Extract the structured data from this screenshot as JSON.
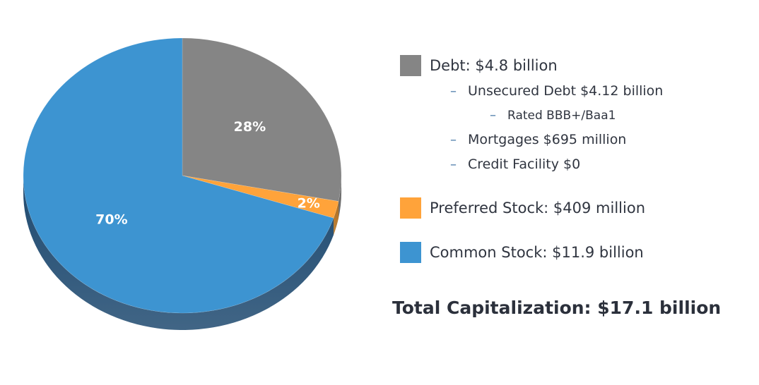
{
  "chart_data": {
    "type": "pie",
    "title": "",
    "slices": [
      {
        "name": "Debt",
        "value": 28,
        "label": "28%",
        "color": "#858585",
        "side_color": "#5c5c5c"
      },
      {
        "name": "Preferred Stock",
        "value": 2,
        "label": "2%",
        "color": "#ffa33a",
        "side_color": "#b06d1c"
      },
      {
        "name": "Common Stock",
        "value": 70,
        "label": "70%",
        "color": "#3d94d1",
        "side_color": "#1f4a70"
      }
    ],
    "start_angle": "12 o'clock",
    "direction": "clockwise",
    "style": "3d"
  },
  "legend": {
    "debt": {
      "label": "Debt: $4.8 billion",
      "color": "#858585",
      "sub_items": [
        {
          "dash": "–",
          "text": "Unsecured Debt $4.12 billion"
        },
        {
          "dash": "–",
          "text": "Rated BBB+/Baa1"
        },
        {
          "dash": "–",
          "text": "Mortgages $695 million"
        },
        {
          "dash": "–",
          "text": "Credit Facility $0"
        }
      ]
    },
    "preferred": {
      "label": "Preferred Stock: $409 million",
      "color": "#ffa33a"
    },
    "common": {
      "label": "Common Stock: $11.9 billion",
      "color": "#3d94d1"
    }
  },
  "total": "Total Capitalization: $17.1 billion"
}
